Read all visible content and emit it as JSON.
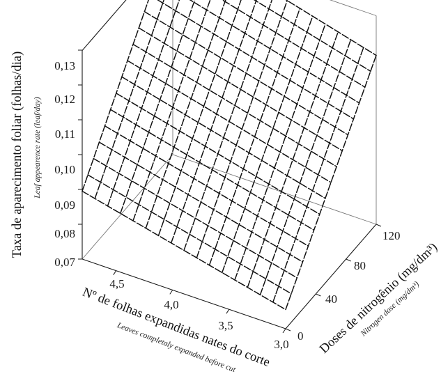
{
  "chart_data": {
    "type": "surface",
    "z_axis": {
      "label": "Taxa de aparecimento foliar (folhas/dia)",
      "sublabel": "Leaf appearence rate (leaf/day)",
      "ticks": [
        "0,07",
        "0,08",
        "0,09",
        "0,10",
        "0,11",
        "0,12",
        "0,13"
      ],
      "range": [
        0.07,
        0.13
      ]
    },
    "x_axis": {
      "label": "Nº de folhas expandidas nates do corte",
      "sublabel": "Leaves completaly expanded before cut",
      "ticks": [
        "4,5",
        "4,0",
        "3,5",
        "3,0"
      ],
      "range": [
        3.0,
        4.8
      ]
    },
    "y_axis": {
      "label": "Doses de nitrogênio (mg/dm³)",
      "sublabel": "Nitrogen dose (mg/dm³)",
      "ticks": [
        "0",
        "40",
        "80",
        "120"
      ],
      "range": [
        0,
        120
      ]
    },
    "surface": {
      "corners": [
        {
          "leaves": 4.8,
          "nitrogen": 0,
          "rate": 0.0895
        },
        {
          "leaves": 3.0,
          "nitrogen": 0,
          "rate": 0.0755
        },
        {
          "leaves": 4.8,
          "nitrogen": 120,
          "rate": 0.1345
        },
        {
          "leaves": 3.0,
          "nitrogen": 120,
          "rate": 0.1185
        }
      ],
      "grid_divisions": 16
    }
  }
}
